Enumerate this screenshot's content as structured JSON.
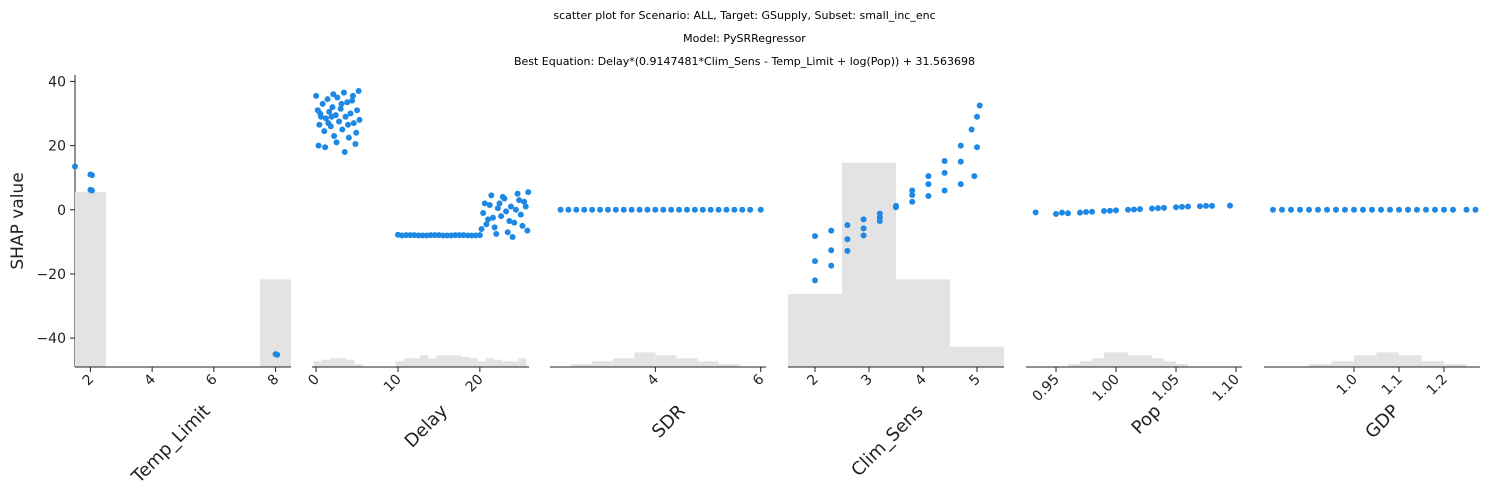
{
  "titles": {
    "line1": "scatter plot for Scenario: ALL, Target: GSupply, Subset: small_inc_enc",
    "line2": "Model: PySRRegressor",
    "line3": "Best Equation: Delay*(0.9147481*Clim_Sens - Temp_Limit + log(Pop)) + 31.563698"
  },
  "colors": {
    "points": "#1e88e5",
    "hist": "#e3e3e3",
    "axis": "#222222"
  },
  "chart_data": {
    "type": "scatter",
    "ylabel": "SHAP value",
    "ylim": [
      -49,
      42
    ],
    "yticks": [
      40,
      20,
      0,
      -20,
      -40
    ],
    "ytick_labels": [
      "40",
      "20",
      "0",
      "−20",
      "−40"
    ],
    "panels": [
      {
        "xlabel": "Temp_Limit",
        "xlim": [
          1.5,
          8.5
        ],
        "xticks": [
          2,
          4,
          6,
          8
        ],
        "xtick_labels": [
          "2",
          "4",
          "6",
          "8"
        ],
        "hist": [
          {
            "x0": 1.5,
            "x1": 2.5,
            "h": 0.6
          },
          {
            "x0": 7.5,
            "x1": 8.5,
            "h": 0.3
          }
        ],
        "points": [
          [
            1.5,
            13.5
          ],
          [
            2.0,
            11.0
          ],
          [
            2.05,
            10.8
          ],
          [
            2.0,
            6.2
          ],
          [
            2.05,
            6.0
          ],
          [
            8.0,
            -45.0
          ],
          [
            8.05,
            -45.2
          ]
        ]
      },
      {
        "xlabel": "Delay",
        "xlim": [
          -0.5,
          26
        ],
        "xticks": [
          0,
          10,
          20
        ],
        "xtick_labels": [
          "0",
          "10",
          "20"
        ],
        "hist": [
          {
            "x0": -0.3,
            "x1": 0.7,
            "h": 0.02
          },
          {
            "x0": 0.7,
            "x1": 1.7,
            "h": 0.025
          },
          {
            "x0": 1.7,
            "x1": 2.7,
            "h": 0.03
          },
          {
            "x0": 2.7,
            "x1": 3.7,
            "h": 0.03
          },
          {
            "x0": 3.7,
            "x1": 4.7,
            "h": 0.025
          },
          {
            "x0": 4.7,
            "x1": 5.7,
            "h": 0.01
          },
          {
            "x0": 9.7,
            "x1": 10.7,
            "h": 0.02
          },
          {
            "x0": 10.7,
            "x1": 11.7,
            "h": 0.03
          },
          {
            "x0": 11.7,
            "x1": 12.7,
            "h": 0.03
          },
          {
            "x0": 12.7,
            "x1": 13.7,
            "h": 0.04
          },
          {
            "x0": 13.7,
            "x1": 14.7,
            "h": 0.03
          },
          {
            "x0": 14.7,
            "x1": 15.7,
            "h": 0.04
          },
          {
            "x0": 15.7,
            "x1": 16.7,
            "h": 0.04
          },
          {
            "x0": 16.7,
            "x1": 17.7,
            "h": 0.04
          },
          {
            "x0": 17.7,
            "x1": 18.7,
            "h": 0.035
          },
          {
            "x0": 18.7,
            "x1": 19.7,
            "h": 0.03
          },
          {
            "x0": 19.7,
            "x1": 20.7,
            "h": 0.02
          },
          {
            "x0": 20.7,
            "x1": 21.7,
            "h": 0.03
          },
          {
            "x0": 21.7,
            "x1": 22.7,
            "h": 0.025
          },
          {
            "x0": 22.7,
            "x1": 23.7,
            "h": 0.02
          },
          {
            "x0": 23.7,
            "x1": 24.7,
            "h": 0.02
          },
          {
            "x0": 24.7,
            "x1": 25.7,
            "h": 0.03
          }
        ],
        "points": [
          [
            0.0,
            35.5
          ],
          [
            0.2,
            31.0
          ],
          [
            0.4,
            26.5
          ],
          [
            0.6,
            29.0
          ],
          [
            0.3,
            20.0
          ],
          [
            0.8,
            33.0
          ],
          [
            1.0,
            24.5
          ],
          [
            1.2,
            28.5
          ],
          [
            1.1,
            19.5
          ],
          [
            1.4,
            34.5
          ],
          [
            1.6,
            30.5
          ],
          [
            1.8,
            26.0
          ],
          [
            2.0,
            32.0
          ],
          [
            2.2,
            23.0
          ],
          [
            2.4,
            29.5
          ],
          [
            2.6,
            35.0
          ],
          [
            2.8,
            27.5
          ],
          [
            3.0,
            31.5
          ],
          [
            3.2,
            25.0
          ],
          [
            3.4,
            36.5
          ],
          [
            3.6,
            29.0
          ],
          [
            3.8,
            33.5
          ],
          [
            4.0,
            22.5
          ],
          [
            4.2,
            30.0
          ],
          [
            4.4,
            34.0
          ],
          [
            4.6,
            27.0
          ],
          [
            4.8,
            20.5
          ],
          [
            5.0,
            31.0
          ],
          [
            5.2,
            37.0
          ],
          [
            5.3,
            28.0
          ],
          [
            3.5,
            18.0
          ],
          [
            2.5,
            21.0
          ],
          [
            1.5,
            27.0
          ],
          [
            4.5,
            35.5
          ],
          [
            0.5,
            30.0
          ],
          [
            3.1,
            33.0
          ],
          [
            2.1,
            36.0
          ],
          [
            4.9,
            24.0
          ],
          [
            1.9,
            29.0
          ],
          [
            3.9,
            26.5
          ],
          [
            10.0,
            -7.8
          ],
          [
            11.5,
            -7.9
          ],
          [
            13.0,
            -8.0
          ],
          [
            14.5,
            -7.9
          ],
          [
            16.0,
            -8.0
          ],
          [
            17.5,
            -7.9
          ],
          [
            19.0,
            -8.0
          ],
          [
            20.0,
            -7.9
          ],
          [
            10.5,
            -8.0
          ],
          [
            12.0,
            -7.9
          ],
          [
            13.5,
            -8.0
          ],
          [
            15.0,
            -7.9
          ],
          [
            16.5,
            -8.0
          ],
          [
            18.0,
            -7.9
          ],
          [
            19.5,
            -8.0
          ],
          [
            11.0,
            -7.9
          ],
          [
            12.5,
            -8.0
          ],
          [
            14.0,
            -7.9
          ],
          [
            15.5,
            -8.0
          ],
          [
            17.0,
            -7.9
          ],
          [
            18.5,
            -8.0
          ],
          [
            20.2,
            -6.0
          ],
          [
            20.6,
            2.0
          ],
          [
            21.0,
            -3.0
          ],
          [
            21.4,
            4.5
          ],
          [
            21.8,
            -5.5
          ],
          [
            22.2,
            0.5
          ],
          [
            22.6,
            -2.0
          ],
          [
            23.0,
            3.5
          ],
          [
            23.4,
            -7.0
          ],
          [
            23.8,
            1.0
          ],
          [
            24.2,
            -4.0
          ],
          [
            24.6,
            5.0
          ],
          [
            25.0,
            -1.5
          ],
          [
            25.4,
            2.5
          ],
          [
            25.8,
            -6.5
          ],
          [
            20.4,
            -1.0
          ],
          [
            21.2,
            1.5
          ],
          [
            22.0,
            -7.5
          ],
          [
            22.8,
            4.0
          ],
          [
            23.6,
            -3.5
          ],
          [
            24.4,
            0.0
          ],
          [
            25.2,
            -5.0
          ],
          [
            25.9,
            5.5
          ],
          [
            21.6,
            -2.5
          ],
          [
            23.2,
            -0.5
          ],
          [
            24.8,
            3.0
          ],
          [
            20.8,
            -4.5
          ],
          [
            22.4,
            2.0
          ],
          [
            24.0,
            -8.5
          ],
          [
            25.6,
            1.0
          ]
        ]
      },
      {
        "xlabel": "SDR",
        "xlim": [
          2.0,
          6.1
        ],
        "xticks": [
          4,
          6
        ],
        "xtick_labels": [
          "4",
          "6"
        ],
        "hist": [
          {
            "x0": 2.4,
            "x1": 2.8,
            "h": 0.01
          },
          {
            "x0": 2.8,
            "x1": 3.2,
            "h": 0.02
          },
          {
            "x0": 3.2,
            "x1": 3.6,
            "h": 0.03
          },
          {
            "x0": 3.6,
            "x1": 4.0,
            "h": 0.05
          },
          {
            "x0": 4.0,
            "x1": 4.4,
            "h": 0.04
          },
          {
            "x0": 4.4,
            "x1": 4.8,
            "h": 0.03
          },
          {
            "x0": 4.8,
            "x1": 5.2,
            "h": 0.02
          },
          {
            "x0": 5.2,
            "x1": 5.6,
            "h": 0.01
          }
        ],
        "points": [
          [
            2.2,
            0.0
          ],
          [
            2.5,
            0.0
          ],
          [
            2.8,
            0.0
          ],
          [
            3.1,
            0.0
          ],
          [
            3.4,
            0.0
          ],
          [
            3.7,
            0.0
          ],
          [
            4.0,
            0.0
          ],
          [
            4.3,
            0.0
          ],
          [
            4.6,
            0.0
          ],
          [
            4.9,
            0.0
          ],
          [
            5.2,
            0.0
          ],
          [
            5.5,
            0.0
          ],
          [
            5.8,
            0.0
          ],
          [
            6.0,
            0.0
          ],
          [
            2.35,
            0.0
          ],
          [
            2.65,
            0.0
          ],
          [
            2.95,
            0.0
          ],
          [
            3.25,
            0.0
          ],
          [
            3.55,
            0.0
          ],
          [
            3.85,
            0.0
          ],
          [
            4.15,
            0.0
          ],
          [
            4.45,
            0.0
          ],
          [
            4.75,
            0.0
          ],
          [
            5.05,
            0.0
          ],
          [
            5.35,
            0.0
          ],
          [
            5.65,
            0.0
          ]
        ]
      },
      {
        "xlabel": "Clim_Sens",
        "xlim": [
          1.5,
          5.5
        ],
        "xticks": [
          2,
          3,
          4,
          5
        ],
        "xtick_labels": [
          "2",
          "3",
          "4",
          "5"
        ],
        "hist": [
          {
            "x0": 1.5,
            "x1": 2.5,
            "h": 0.25
          },
          {
            "x0": 2.5,
            "x1": 3.5,
            "h": 0.7
          },
          {
            "x0": 3.5,
            "x1": 4.5,
            "h": 0.3
          },
          {
            "x0": 4.5,
            "x1": 5.5,
            "h": 0.07
          }
        ],
        "points": [
          [
            2.0,
            -8.2
          ],
          [
            2.3,
            -6.5
          ],
          [
            2.6,
            -4.8
          ],
          [
            2.9,
            -3.0
          ],
          [
            3.2,
            -1.2
          ],
          [
            3.5,
            0.8
          ],
          [
            3.8,
            2.5
          ],
          [
            4.1,
            4.3
          ],
          [
            4.4,
            6.0
          ],
          [
            4.7,
            8.0
          ],
          [
            4.95,
            10.5
          ],
          [
            2.0,
            -16.0
          ],
          [
            2.3,
            -12.6
          ],
          [
            2.6,
            -9.2
          ],
          [
            2.9,
            -5.8
          ],
          [
            3.2,
            -2.4
          ],
          [
            3.5,
            1.0
          ],
          [
            3.8,
            4.6
          ],
          [
            4.1,
            8.0
          ],
          [
            4.4,
            11.5
          ],
          [
            4.7,
            15.0
          ],
          [
            5.0,
            19.5
          ],
          [
            2.0,
            -22.0
          ],
          [
            2.3,
            -17.4
          ],
          [
            2.6,
            -12.8
          ],
          [
            2.9,
            -8.0
          ],
          [
            3.2,
            -3.5
          ],
          [
            3.5,
            1.2
          ],
          [
            3.8,
            6.0
          ],
          [
            4.1,
            10.5
          ],
          [
            4.4,
            15.2
          ],
          [
            4.7,
            20.0
          ],
          [
            4.9,
            25.0
          ],
          [
            5.0,
            29.0
          ],
          [
            5.05,
            32.5
          ]
        ]
      },
      {
        "xlabel": "Pop",
        "xlim": [
          0.925,
          1.105
        ],
        "xticks": [
          0.95,
          1.0,
          1.05,
          1.1
        ],
        "xtick_labels": [
          "0.95",
          "1.00",
          "1.05",
          "1.10"
        ],
        "hist": [
          {
            "x0": 0.96,
            "x1": 0.97,
            "h": 0.01
          },
          {
            "x0": 0.97,
            "x1": 0.98,
            "h": 0.02
          },
          {
            "x0": 0.98,
            "x1": 0.99,
            "h": 0.03
          },
          {
            "x0": 0.99,
            "x1": 1.0,
            "h": 0.05
          },
          {
            "x0": 1.0,
            "x1": 1.01,
            "h": 0.05
          },
          {
            "x0": 1.01,
            "x1": 1.02,
            "h": 0.04
          },
          {
            "x0": 1.02,
            "x1": 1.03,
            "h": 0.04
          },
          {
            "x0": 1.03,
            "x1": 1.04,
            "h": 0.03
          },
          {
            "x0": 1.04,
            "x1": 1.05,
            "h": 0.02
          },
          {
            "x0": 1.05,
            "x1": 1.06,
            "h": 0.01
          }
        ],
        "points": [
          [
            0.933,
            -0.8
          ],
          [
            0.95,
            -1.3
          ],
          [
            0.96,
            -1.1
          ],
          [
            0.97,
            -0.9
          ],
          [
            0.98,
            -0.6
          ],
          [
            0.99,
            -0.4
          ],
          [
            1.0,
            -0.2
          ],
          [
            1.01,
            0.0
          ],
          [
            1.02,
            0.2
          ],
          [
            1.03,
            0.4
          ],
          [
            1.04,
            0.6
          ],
          [
            1.05,
            0.8
          ],
          [
            1.06,
            1.0
          ],
          [
            1.07,
            1.1
          ],
          [
            1.08,
            1.2
          ],
          [
            1.095,
            1.3
          ],
          [
            0.955,
            -0.9
          ],
          [
            0.975,
            -0.7
          ],
          [
            0.995,
            -0.3
          ],
          [
            1.015,
            0.1
          ],
          [
            1.035,
            0.5
          ],
          [
            1.055,
            0.9
          ],
          [
            1.075,
            1.2
          ]
        ]
      },
      {
        "xlabel": "GDP",
        "xlim": [
          0.8,
          1.28
        ],
        "xticks": [
          1.0,
          1.1,
          1.2
        ],
        "xtick_labels": [
          "1.0",
          "1.1",
          "1.2"
        ],
        "hist": [
          {
            "x0": 0.9,
            "x1": 0.95,
            "h": 0.01
          },
          {
            "x0": 0.95,
            "x1": 1.0,
            "h": 0.02
          },
          {
            "x0": 1.0,
            "x1": 1.05,
            "h": 0.04
          },
          {
            "x0": 1.05,
            "x1": 1.1,
            "h": 0.05
          },
          {
            "x0": 1.1,
            "x1": 1.15,
            "h": 0.04
          },
          {
            "x0": 1.15,
            "x1": 1.2,
            "h": 0.02
          },
          {
            "x0": 1.2,
            "x1": 1.25,
            "h": 0.01
          }
        ],
        "points": [
          [
            0.82,
            0.0
          ],
          [
            0.86,
            0.0
          ],
          [
            0.9,
            0.0
          ],
          [
            0.94,
            0.0
          ],
          [
            0.98,
            0.0
          ],
          [
            1.02,
            0.0
          ],
          [
            1.06,
            0.0
          ],
          [
            1.1,
            0.0
          ],
          [
            1.14,
            0.0
          ],
          [
            1.18,
            0.0
          ],
          [
            1.22,
            0.0
          ],
          [
            1.25,
            0.0
          ],
          [
            1.27,
            0.0
          ],
          [
            0.84,
            0.0
          ],
          [
            0.88,
            0.0
          ],
          [
            0.92,
            0.0
          ],
          [
            0.96,
            0.0
          ],
          [
            1.0,
            0.0
          ],
          [
            1.04,
            0.0
          ],
          [
            1.08,
            0.0
          ],
          [
            1.12,
            0.0
          ],
          [
            1.16,
            0.0
          ],
          [
            1.2,
            0.0
          ]
        ]
      }
    ]
  }
}
